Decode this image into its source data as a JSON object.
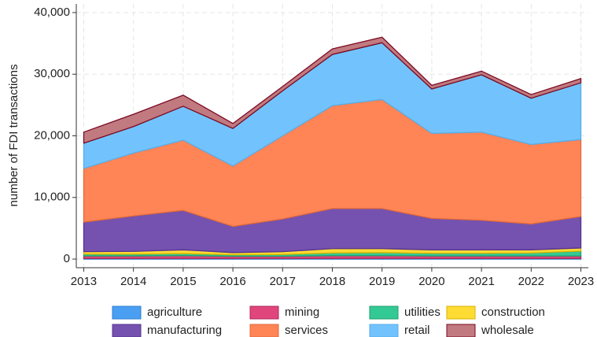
{
  "chart_data": {
    "type": "stacked_area",
    "y_label": "number of FDI transactions",
    "x": [
      2013,
      2014,
      2015,
      2016,
      2017,
      2018,
      2019,
      2020,
      2021,
      2022,
      2023
    ],
    "xlim": [
      2012.85,
      2023.15
    ],
    "xticks": [
      2013,
      2014,
      2015,
      2016,
      2017,
      2018,
      2019,
      2020,
      2021,
      2022,
      2023
    ],
    "ylim": [
      -1400,
      41400
    ],
    "yticks": [
      0,
      {
        "value": 10000,
        "label": "10,000"
      },
      {
        "value": 20000,
        "label": "20,000"
      },
      {
        "value": 30000,
        "label": "30,000"
      },
      {
        "value": 40000,
        "label": "40,000"
      }
    ],
    "grid": true,
    "legend": "bottom",
    "series": [
      {
        "name": "agriculture",
        "color": "#4b9ff2",
        "edge": "#2f7fd0",
        "values": [
          100,
          100,
          100,
          100,
          100,
          100,
          100,
          100,
          100,
          100,
          100
        ]
      },
      {
        "name": "mining",
        "color": "#e0467c",
        "edge": "#b02858",
        "values": [
          400,
          400,
          450,
          350,
          350,
          450,
          450,
          400,
          400,
          400,
          400
        ]
      },
      {
        "name": "utilities",
        "color": "#33c995",
        "edge": "#1e9e70",
        "values": [
          300,
          300,
          350,
          250,
          300,
          450,
          500,
          450,
          450,
          500,
          800
        ]
      },
      {
        "name": "construction",
        "color": "#ffdc33",
        "edge": "#d9b300",
        "values": [
          400,
          450,
          600,
          350,
          450,
          700,
          650,
          550,
          550,
          500,
          500
        ]
      },
      {
        "name": "manufacturing",
        "color": "#7552b0",
        "edge": "#553490",
        "values": [
          4800,
          5750,
          6400,
          4250,
          5300,
          6500,
          6500,
          5100,
          4800,
          4200,
          5100
        ]
      },
      {
        "name": "services",
        "color": "#ff8456",
        "edge": "#e06a3c",
        "values": [
          8700,
          10200,
          11400,
          9800,
          13500,
          16700,
          17700,
          13800,
          14300,
          12900,
          12500
        ]
      },
      {
        "name": "retail",
        "color": "#72c3fd",
        "edge": "#58aee8",
        "values": [
          4100,
          4300,
          5500,
          6100,
          7300,
          8300,
          9200,
          7200,
          9300,
          7500,
          9200
        ]
      },
      {
        "name": "wholesale",
        "color": "#c17a80",
        "edge": "#7a0a22",
        "values": [
          1800,
          2000,
          1800,
          800,
          700,
          900,
          900,
          600,
          600,
          600,
          700
        ]
      }
    ]
  }
}
